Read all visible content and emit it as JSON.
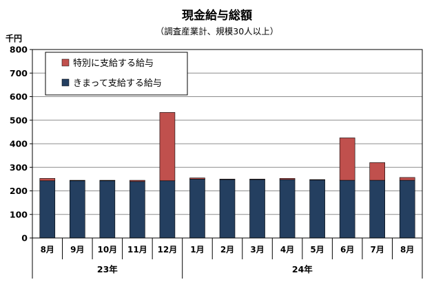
{
  "chart_data": {
    "type": "bar",
    "stacked": true,
    "title": "現金給与総額",
    "subtitle": "（調査産業計、規模30人以上）",
    "ylabel": "千円",
    "ylim": [
      0,
      800
    ],
    "yticks": [
      0,
      100,
      200,
      300,
      400,
      500,
      600,
      700,
      800
    ],
    "grid": true,
    "legend_position": "top-left",
    "categories": [
      "8月",
      "9月",
      "10月",
      "11月",
      "12月",
      "1月",
      "2月",
      "3月",
      "4月",
      "5月",
      "6月",
      "7月",
      "8月"
    ],
    "year_groups": [
      {
        "label": "23年",
        "count": 5
      },
      {
        "label": "24年",
        "count": 8
      }
    ],
    "series": [
      {
        "name": "きまって支給する給与",
        "color": "#243f60",
        "values": [
          243,
          243,
          243,
          240,
          243,
          250,
          248,
          248,
          248,
          246,
          245,
          245,
          245
        ]
      },
      {
        "name": "特別に支給する給与",
        "color": "#c0504d",
        "values": [
          10,
          2,
          2,
          5,
          290,
          5,
          2,
          2,
          5,
          2,
          180,
          75,
          12
        ]
      }
    ]
  }
}
